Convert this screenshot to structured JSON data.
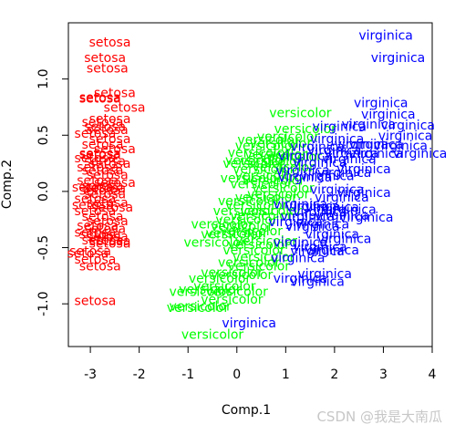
{
  "chart_data": {
    "type": "scatter",
    "title": "",
    "xlabel": "Comp.1",
    "ylabel": "Comp.2",
    "xlim": [
      -3.45,
      4.0
    ],
    "ylim": [
      -1.38,
      1.5
    ],
    "xticks": [
      -3,
      -2,
      -1,
      0,
      1,
      2,
      3,
      4
    ],
    "yticks": [
      -1.0,
      -0.5,
      0.0,
      0.5,
      1.0
    ],
    "xtick_labels": [
      "-3",
      "-2",
      "-1",
      "0",
      "1",
      "2",
      "3",
      "4"
    ],
    "ytick_labels": [
      "-1.0",
      "-0.5",
      "0.0",
      "0.5",
      "1.0"
    ],
    "point_markers": "text labels",
    "grid": false,
    "legend": "none",
    "series": [
      {
        "name": "setosa",
        "color": "#ff0000",
        "points": [
          [
            -2.6,
            1.33
          ],
          [
            -2.7,
            1.19
          ],
          [
            -2.65,
            1.1
          ],
          [
            -2.5,
            0.88
          ],
          [
            -2.8,
            0.83
          ],
          [
            -2.8,
            0.84
          ],
          [
            -2.3,
            0.75
          ],
          [
            -2.6,
            0.65
          ],
          [
            -2.75,
            0.62
          ],
          [
            -2.65,
            0.55
          ],
          [
            -2.9,
            0.52
          ],
          [
            -2.6,
            0.47
          ],
          [
            -2.75,
            0.42
          ],
          [
            -2.5,
            0.38
          ],
          [
            -2.8,
            0.34
          ],
          [
            -2.9,
            0.3
          ],
          [
            -2.7,
            0.27
          ],
          [
            -2.6,
            0.25
          ],
          [
            -2.85,
            0.22
          ],
          [
            -2.75,
            0.19
          ],
          [
            -2.65,
            0.15
          ],
          [
            -2.85,
            0.1
          ],
          [
            -2.5,
            0.08
          ],
          [
            -2.75,
            0.05
          ],
          [
            -2.95,
            0.04
          ],
          [
            -2.8,
            0.01
          ],
          [
            -2.7,
            -0.02
          ],
          [
            -2.9,
            -0.06
          ],
          [
            -2.65,
            -0.1
          ],
          [
            -2.55,
            -0.14
          ],
          [
            -2.9,
            -0.17
          ],
          [
            -2.75,
            -0.22
          ],
          [
            -2.65,
            -0.26
          ],
          [
            -2.85,
            -0.3
          ],
          [
            -2.7,
            -0.33
          ],
          [
            -2.9,
            -0.36
          ],
          [
            -2.65,
            -0.4
          ],
          [
            -2.75,
            -0.43
          ],
          [
            -2.6,
            -0.46
          ],
          [
            -3.0,
            -0.53
          ],
          [
            -3.05,
            -0.55
          ],
          [
            -2.9,
            -0.6
          ],
          [
            -2.8,
            -0.66
          ],
          [
            -2.6,
            -0.44
          ],
          [
            -2.8,
            -0.38
          ],
          [
            -2.95,
            -0.12
          ],
          [
            -2.7,
            0.03
          ],
          [
            -2.8,
            0.33
          ],
          [
            -2.7,
            0.58
          ],
          [
            -2.9,
            -0.97
          ]
        ]
      },
      {
        "name": "versicolor",
        "color": "#00ff00",
        "points": [
          [
            1.3,
            0.7
          ],
          [
            1.4,
            0.56
          ],
          [
            1.05,
            0.49
          ],
          [
            0.65,
            0.46
          ],
          [
            0.9,
            0.43
          ],
          [
            0.6,
            0.41
          ],
          [
            0.45,
            0.35
          ],
          [
            0.8,
            0.33
          ],
          [
            1.1,
            0.31
          ],
          [
            0.4,
            0.28
          ],
          [
            0.7,
            0.27
          ],
          [
            0.35,
            0.25
          ],
          [
            0.95,
            0.22
          ],
          [
            0.55,
            0.2
          ],
          [
            0.6,
            0.14
          ],
          [
            0.3,
            0.12
          ],
          [
            0.75,
            0.1
          ],
          [
            0.5,
            0.07
          ],
          [
            0.95,
            0.03
          ],
          [
            0.85,
            -0.02
          ],
          [
            0.25,
            -0.08
          ],
          [
            0.6,
            -0.05
          ],
          [
            0.4,
            -0.12
          ],
          [
            0.15,
            -0.17
          ],
          [
            0.7,
            -0.17
          ],
          [
            -0.3,
            -0.29
          ],
          [
            0.1,
            -0.31
          ],
          [
            0.3,
            -0.35
          ],
          [
            0.0,
            -0.37
          ],
          [
            -0.1,
            -0.38
          ],
          [
            -0.45,
            -0.45
          ],
          [
            0.45,
            -0.47
          ],
          [
            0.6,
            -0.44
          ],
          [
            0.35,
            -0.52
          ],
          [
            0.55,
            -0.58
          ],
          [
            0.25,
            -0.63
          ],
          [
            0.45,
            -0.66
          ],
          [
            -0.1,
            -0.72
          ],
          [
            0.1,
            -0.74
          ],
          [
            -0.35,
            -0.77
          ],
          [
            -0.25,
            -0.84
          ],
          [
            -0.55,
            -0.87
          ],
          [
            -0.75,
            -0.89
          ],
          [
            0.0,
            -0.89
          ],
          [
            -0.1,
            -0.96
          ],
          [
            -0.75,
            -1.02
          ],
          [
            -0.8,
            -1.03
          ],
          [
            -0.5,
            -1.27
          ],
          [
            0.2,
            -0.25
          ],
          [
            0.5,
            -0.21
          ]
        ]
      },
      {
        "name": "virginica",
        "color": "#0000ff",
        "points": [
          [
            3.05,
            1.39
          ],
          [
            3.3,
            1.19
          ],
          [
            2.95,
            0.79
          ],
          [
            3.1,
            0.69
          ],
          [
            2.7,
            0.6
          ],
          [
            3.5,
            0.59
          ],
          [
            2.1,
            0.58
          ],
          [
            3.45,
            0.5
          ],
          [
            2.05,
            0.47
          ],
          [
            2.55,
            0.42
          ],
          [
            2.85,
            0.42
          ],
          [
            3.35,
            0.41
          ],
          [
            1.65,
            0.4
          ],
          [
            2.0,
            0.37
          ],
          [
            2.35,
            0.34
          ],
          [
            2.85,
            0.34
          ],
          [
            3.75,
            0.34
          ],
          [
            1.4,
            0.32
          ],
          [
            2.3,
            0.29
          ],
          [
            1.7,
            0.26
          ],
          [
            2.6,
            0.2
          ],
          [
            1.35,
            0.19
          ],
          [
            2.2,
            0.17
          ],
          [
            1.85,
            0.14
          ],
          [
            1.4,
            0.13
          ],
          [
            2.05,
            0.02
          ],
          [
            2.6,
            -0.01
          ],
          [
            2.15,
            -0.05
          ],
          [
            1.3,
            -0.11
          ],
          [
            1.55,
            -0.13
          ],
          [
            1.95,
            -0.14
          ],
          [
            2.3,
            -0.16
          ],
          [
            1.7,
            -0.18
          ],
          [
            2.15,
            -0.21
          ],
          [
            2.65,
            -0.23
          ],
          [
            1.45,
            -0.22
          ],
          [
            1.75,
            -0.29
          ],
          [
            1.2,
            -0.27
          ],
          [
            1.55,
            -0.31
          ],
          [
            1.95,
            -0.38
          ],
          [
            2.2,
            -0.42
          ],
          [
            1.3,
            -0.45
          ],
          [
            1.7,
            -0.49
          ],
          [
            1.65,
            -0.53
          ],
          [
            1.25,
            -0.59
          ],
          [
            1.95,
            -0.52
          ],
          [
            1.8,
            -0.73
          ],
          [
            1.3,
            -0.77
          ],
          [
            1.65,
            -0.8
          ],
          [
            0.25,
            -1.17
          ]
        ]
      }
    ]
  },
  "watermark": "CSDN @我是大南瓜"
}
